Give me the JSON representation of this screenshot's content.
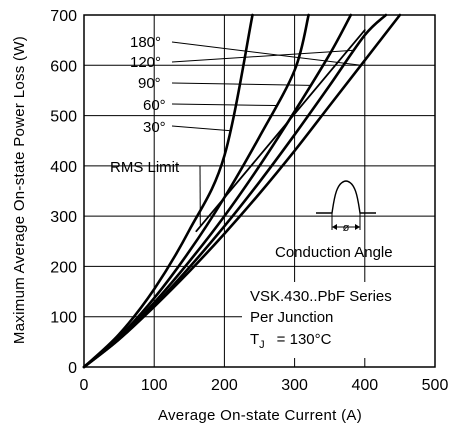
{
  "chart_data": {
    "type": "line",
    "xlabel": "Average On-state Current (A)",
    "ylabel": "Maximum Average On-state Power Loss (W)",
    "xlim": [
      0,
      500
    ],
    "ylim": [
      0,
      700
    ],
    "x_ticks": [
      "0",
      "100",
      "200",
      "300",
      "400",
      "500"
    ],
    "y_ticks": [
      "0",
      "100",
      "200",
      "300",
      "400",
      "500",
      "600",
      "700"
    ],
    "grid": true,
    "series": [
      {
        "name": "180°",
        "x": [
          0,
          50,
          100,
          150,
          200,
          250,
          300,
          350,
          400,
          450
        ],
        "y": [
          0,
          55,
          120,
          190,
          265,
          345,
          430,
          520,
          610,
          700
        ]
      },
      {
        "name": "120°",
        "x": [
          0,
          50,
          100,
          150,
          200,
          250,
          300,
          350,
          400,
          430
        ],
        "y": [
          0,
          55,
          122,
          198,
          280,
          368,
          462,
          560,
          660,
          700
        ]
      },
      {
        "name": "90°",
        "x": [
          0,
          50,
          100,
          150,
          200,
          250,
          300,
          350,
          380
        ],
        "y": [
          0,
          57,
          128,
          210,
          300,
          400,
          508,
          622,
          700
        ]
      },
      {
        "name": "60°",
        "x": [
          0,
          50,
          100,
          150,
          200,
          250,
          300,
          320
        ],
        "y": [
          0,
          60,
          137,
          230,
          337,
          458,
          590,
          700
        ]
      },
      {
        "name": "30°",
        "x": [
          0,
          50,
          100,
          150,
          200,
          240
        ],
        "y": [
          0,
          65,
          155,
          272,
          420,
          700
        ]
      }
    ],
    "rms_limit": {
      "label": "RMS Limit",
      "x": [
        160,
        400
      ],
      "y": [
        270,
        670
      ]
    },
    "annotations": {
      "angle_labels": [
        "180°",
        "120°",
        "90°",
        "60°",
        "30°"
      ],
      "rms_label": "RMS Limit",
      "inset_label": "Conduction Angle",
      "inset_phi": "ø",
      "series_text": "VSK.430..PbF Series",
      "junction_text": "Per Junction",
      "tj_text": "T",
      "tj_sub": "J",
      "tj_value": "= 130°C"
    }
  }
}
